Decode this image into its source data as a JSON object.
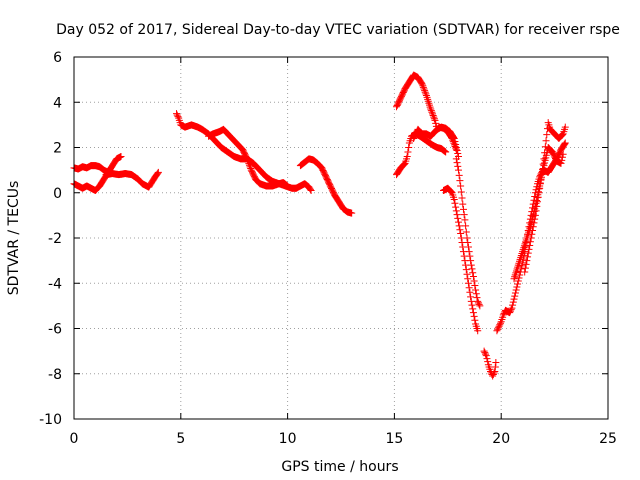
{
  "chart_data": {
    "type": "scatter",
    "title": "Day 052 of 2017, Sidereal Day-to-day VTEC variation (SDTVAR) for receiver rspe",
    "xlabel": "GPS time / hours",
    "ylabel": "SDTVAR / TECUs",
    "xlim": [
      0,
      25
    ],
    "ylim": [
      -10,
      6
    ],
    "xticks": [
      "0",
      "5",
      "10",
      "15",
      "20",
      "25"
    ],
    "yticks": [
      "-10",
      "-8",
      "-6",
      "-4",
      "-2",
      "0",
      "2",
      "4",
      "6"
    ],
    "grid": true,
    "marker": "+",
    "color": "#ff0000",
    "segments": [
      [
        [
          0.0,
          1.1
        ],
        [
          0.2,
          1.05
        ],
        [
          0.4,
          1.15
        ],
        [
          0.6,
          1.1
        ],
        [
          0.8,
          1.2
        ],
        [
          1.0,
          1.2
        ],
        [
          1.2,
          1.15
        ],
        [
          1.4,
          1.0
        ],
        [
          1.6,
          0.9
        ],
        [
          1.8,
          0.85
        ]
      ],
      [
        [
          0.0,
          0.4
        ],
        [
          0.2,
          0.3
        ],
        [
          0.4,
          0.2
        ],
        [
          0.6,
          0.3
        ],
        [
          0.8,
          0.2
        ],
        [
          1.0,
          0.1
        ],
        [
          1.2,
          0.3
        ],
        [
          1.4,
          0.6
        ],
        [
          1.6,
          0.9
        ],
        [
          1.8,
          1.2
        ],
        [
          2.0,
          1.5
        ],
        [
          2.2,
          1.6
        ]
      ],
      [
        [
          1.5,
          0.8
        ],
        [
          1.8,
          0.85
        ],
        [
          2.1,
          0.8
        ],
        [
          2.4,
          0.85
        ],
        [
          2.7,
          0.8
        ],
        [
          3.0,
          0.6
        ],
        [
          3.2,
          0.4
        ],
        [
          3.4,
          0.3
        ],
        [
          3.5,
          0.25
        ],
        [
          3.6,
          0.4
        ],
        [
          3.8,
          0.7
        ],
        [
          3.95,
          0.9
        ]
      ],
      [
        [
          4.8,
          3.5
        ],
        [
          4.9,
          3.3
        ],
        [
          5.0,
          3.0
        ],
        [
          5.2,
          2.9
        ],
        [
          5.5,
          3.0
        ],
        [
          5.8,
          2.9
        ],
        [
          6.0,
          2.8
        ],
        [
          6.3,
          2.6
        ],
        [
          6.6,
          2.3
        ],
        [
          6.9,
          2.0
        ],
        [
          7.2,
          1.8
        ],
        [
          7.5,
          1.6
        ],
        [
          7.8,
          1.5
        ],
        [
          8.1,
          1.5
        ],
        [
          8.4,
          1.3
        ],
        [
          8.7,
          1.0
        ],
        [
          9.0,
          0.7
        ],
        [
          9.3,
          0.5
        ],
        [
          9.6,
          0.4
        ],
        [
          9.9,
          0.3
        ],
        [
          10.2,
          0.2
        ],
        [
          10.4,
          0.2
        ]
      ],
      [
        [
          6.3,
          2.5
        ],
        [
          6.5,
          2.6
        ],
        [
          6.8,
          2.7
        ],
        [
          7.0,
          2.8
        ],
        [
          7.3,
          2.5
        ],
        [
          7.6,
          2.2
        ],
        [
          7.9,
          1.9
        ],
        [
          8.1,
          1.5
        ],
        [
          8.3,
          1.0
        ],
        [
          8.5,
          0.6
        ],
        [
          8.7,
          0.4
        ],
        [
          9.0,
          0.3
        ],
        [
          9.3,
          0.3
        ],
        [
          9.6,
          0.4
        ],
        [
          9.8,
          0.45
        ],
        [
          10.0,
          0.3
        ]
      ],
      [
        [
          10.4,
          0.2
        ],
        [
          10.6,
          0.3
        ],
        [
          10.8,
          0.4
        ],
        [
          11.0,
          0.25
        ],
        [
          11.1,
          0.1
        ]
      ],
      [
        [
          10.6,
          1.2
        ],
        [
          10.8,
          1.35
        ],
        [
          11.0,
          1.5
        ],
        [
          11.2,
          1.45
        ],
        [
          11.4,
          1.3
        ],
        [
          11.6,
          1.1
        ],
        [
          11.8,
          0.7
        ],
        [
          12.0,
          0.3
        ],
        [
          12.2,
          -0.1
        ],
        [
          12.4,
          -0.4
        ],
        [
          12.6,
          -0.7
        ],
        [
          12.8,
          -0.85
        ],
        [
          13.0,
          -0.9
        ]
      ],
      [
        [
          15.1,
          0.8
        ],
        [
          15.3,
          1.1
        ],
        [
          15.5,
          1.3
        ],
        [
          15.6,
          1.6
        ],
        [
          15.7,
          2.2
        ],
        [
          15.8,
          2.5
        ],
        [
          16.0,
          2.6
        ],
        [
          16.2,
          2.5
        ],
        [
          16.5,
          2.3
        ],
        [
          16.8,
          2.1
        ],
        [
          17.0,
          2.0
        ],
        [
          17.2,
          1.95
        ],
        [
          17.4,
          1.8
        ]
      ],
      [
        [
          15.1,
          3.8
        ],
        [
          15.3,
          4.2
        ],
        [
          15.5,
          4.6
        ],
        [
          15.7,
          4.9
        ],
        [
          15.9,
          5.2
        ],
        [
          16.1,
          5.1
        ],
        [
          16.3,
          4.8
        ],
        [
          16.5,
          4.3
        ],
        [
          16.7,
          3.7
        ],
        [
          16.9,
          3.2
        ],
        [
          17.0,
          2.8
        ],
        [
          17.2,
          2.9
        ],
        [
          17.4,
          2.85
        ],
        [
          17.6,
          2.7
        ],
        [
          17.8,
          2.4
        ],
        [
          17.9,
          2.0
        ],
        [
          18.0,
          1.6
        ]
      ],
      [
        [
          15.9,
          2.4
        ],
        [
          16.1,
          2.8
        ],
        [
          16.3,
          2.6
        ],
        [
          16.5,
          2.6
        ],
        [
          16.7,
          2.5
        ],
        [
          16.9,
          2.7
        ],
        [
          17.1,
          2.9
        ],
        [
          17.3,
          2.85
        ],
        [
          17.5,
          2.7
        ],
        [
          17.7,
          2.4
        ],
        [
          17.9,
          1.9
        ]
      ],
      [
        [
          17.3,
          0.1
        ],
        [
          17.5,
          0.2
        ],
        [
          17.7,
          0.0
        ],
        [
          17.8,
          -0.3
        ],
        [
          17.9,
          -0.8
        ],
        [
          18.0,
          -1.3
        ],
        [
          18.1,
          -1.8
        ],
        [
          18.2,
          -2.4
        ],
        [
          18.3,
          -3.0
        ],
        [
          18.4,
          -3.6
        ],
        [
          18.5,
          -4.2
        ],
        [
          18.6,
          -4.8
        ],
        [
          18.7,
          -5.3
        ],
        [
          18.8,
          -5.8
        ],
        [
          18.9,
          -6.1
        ]
      ],
      [
        [
          17.9,
          1.5
        ],
        [
          18.0,
          1.0
        ],
        [
          18.1,
          0.3
        ],
        [
          18.2,
          -0.5
        ],
        [
          18.3,
          -1.2
        ],
        [
          18.4,
          -2.0
        ],
        [
          18.5,
          -2.6
        ],
        [
          18.6,
          -3.2
        ],
        [
          18.7,
          -3.7
        ],
        [
          18.8,
          -4.3
        ],
        [
          18.9,
          -4.8
        ],
        [
          19.0,
          -5.0
        ]
      ],
      [
        [
          19.2,
          -7.0
        ],
        [
          19.3,
          -7.2
        ],
        [
          19.4,
          -7.6
        ],
        [
          19.5,
          -7.9
        ],
        [
          19.6,
          -8.1
        ],
        [
          19.7,
          -7.9
        ],
        [
          19.75,
          -7.5
        ]
      ],
      [
        [
          19.8,
          -6.1
        ],
        [
          19.9,
          -5.9
        ],
        [
          20.0,
          -5.7
        ],
        [
          20.1,
          -5.4
        ],
        [
          20.2,
          -5.2
        ],
        [
          20.4,
          -5.3
        ],
        [
          20.5,
          -5.1
        ],
        [
          20.6,
          -4.7
        ],
        [
          20.7,
          -4.3
        ],
        [
          20.8,
          -3.9
        ],
        [
          20.9,
          -3.5
        ],
        [
          21.0,
          -3.1
        ],
        [
          21.1,
          -2.6
        ],
        [
          21.2,
          -2.0
        ],
        [
          21.3,
          -1.5
        ],
        [
          21.4,
          -1.0
        ],
        [
          21.5,
          -0.5
        ],
        [
          21.6,
          0.0
        ],
        [
          21.7,
          0.4
        ],
        [
          21.8,
          0.7
        ],
        [
          21.9,
          0.9
        ],
        [
          22.0,
          1.0
        ],
        [
          22.2,
          0.9
        ],
        [
          22.4,
          1.2
        ],
        [
          22.6,
          1.5
        ],
        [
          22.8,
          1.9
        ],
        [
          23.0,
          2.2
        ]
      ],
      [
        [
          21.1,
          -3.5
        ],
        [
          21.2,
          -3.0
        ],
        [
          21.3,
          -2.5
        ],
        [
          21.4,
          -2.0
        ],
        [
          21.5,
          -1.5
        ],
        [
          21.6,
          -1.0
        ],
        [
          21.7,
          -0.4
        ],
        [
          21.8,
          0.2
        ],
        [
          21.9,
          0.8
        ],
        [
          22.0,
          1.5
        ],
        [
          22.1,
          2.3
        ],
        [
          22.2,
          3.1
        ],
        [
          22.3,
          2.8
        ],
        [
          22.5,
          2.6
        ],
        [
          22.7,
          2.4
        ],
        [
          22.9,
          2.6
        ],
        [
          23.0,
          2.9
        ]
      ],
      [
        [
          20.6,
          -3.8
        ],
        [
          20.8,
          -3.2
        ],
        [
          21.0,
          -2.6
        ],
        [
          21.2,
          -2.0
        ],
        [
          21.4,
          -1.4
        ],
        [
          21.6,
          -0.6
        ],
        [
          21.8,
          0.3
        ],
        [
          22.0,
          1.2
        ],
        [
          22.2,
          2.0
        ],
        [
          22.4,
          1.8
        ],
        [
          22.6,
          1.4
        ],
        [
          22.8,
          1.3
        ],
        [
          22.9,
          1.7
        ]
      ]
    ]
  }
}
